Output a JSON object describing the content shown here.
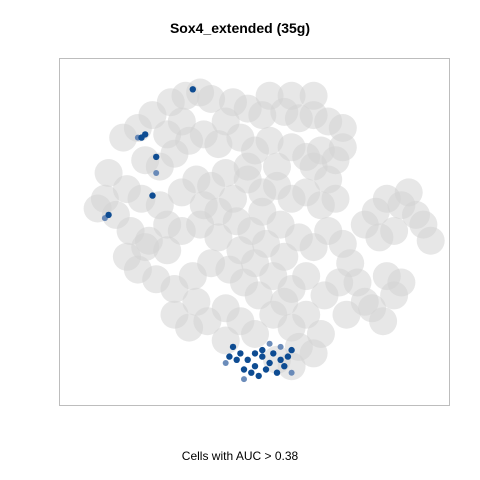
{
  "chart_data": {
    "type": "scatter",
    "title": "Sox4_extended (35g)",
    "xlabel": "Cells with AUC > 0.38",
    "ylabel": "",
    "grid": false,
    "legend": "none",
    "colors": {
      "background_cells": "#d3d3d3",
      "high_auc_cells": "#0e4c92",
      "mid_auc_cells": "#5b7fb3",
      "frame": "#bdbdbd"
    },
    "xlim": [
      0,
      100
    ],
    "ylim": [
      0,
      100
    ],
    "series": [
      {
        "name": "background",
        "points": [
          [
            14,
            79
          ],
          [
            18,
            82
          ],
          [
            22,
            86
          ],
          [
            27,
            90
          ],
          [
            31,
            92
          ],
          [
            35,
            93
          ],
          [
            38,
            91
          ],
          [
            44,
            90
          ],
          [
            48,
            88
          ],
          [
            52,
            86
          ],
          [
            58,
            87
          ],
          [
            62,
            85
          ],
          [
            66,
            86
          ],
          [
            70,
            84
          ],
          [
            74,
            82
          ],
          [
            20,
            72
          ],
          [
            24,
            70
          ],
          [
            28,
            74
          ],
          [
            32,
            78
          ],
          [
            36,
            80
          ],
          [
            40,
            77
          ],
          [
            46,
            79
          ],
          [
            50,
            75
          ],
          [
            54,
            78
          ],
          [
            60,
            76
          ],
          [
            64,
            73
          ],
          [
            68,
            75
          ],
          [
            72,
            72
          ],
          [
            10,
            68
          ],
          [
            15,
            63
          ],
          [
            19,
            60
          ],
          [
            24,
            58
          ],
          [
            30,
            62
          ],
          [
            34,
            66
          ],
          [
            38,
            64
          ],
          [
            42,
            68
          ],
          [
            48,
            66
          ],
          [
            52,
            62
          ],
          [
            56,
            64
          ],
          [
            60,
            60
          ],
          [
            64,
            62
          ],
          [
            68,
            58
          ],
          [
            72,
            60
          ],
          [
            12,
            55
          ],
          [
            16,
            50
          ],
          [
            21,
            47
          ],
          [
            26,
            44
          ],
          [
            30,
            50
          ],
          [
            35,
            52
          ],
          [
            40,
            48
          ],
          [
            45,
            53
          ],
          [
            49,
            50
          ],
          [
            53,
            46
          ],
          [
            57,
            52
          ],
          [
            62,
            48
          ],
          [
            66,
            45
          ],
          [
            70,
            50
          ],
          [
            74,
            46
          ],
          [
            18,
            38
          ],
          [
            23,
            35
          ],
          [
            28,
            32
          ],
          [
            33,
            36
          ],
          [
            38,
            40
          ],
          [
            43,
            38
          ],
          [
            47,
            34
          ],
          [
            51,
            30
          ],
          [
            55,
            36
          ],
          [
            60,
            32
          ],
          [
            64,
            36
          ],
          [
            69,
            30
          ],
          [
            73,
            34
          ],
          [
            28,
            24
          ],
          [
            32,
            20
          ],
          [
            37,
            22
          ],
          [
            42,
            26
          ],
          [
            46,
            22
          ],
          [
            50,
            18
          ],
          [
            55,
            24
          ],
          [
            60,
            20
          ],
          [
            64,
            24
          ],
          [
            68,
            18
          ],
          [
            76,
            40
          ],
          [
            78,
            34
          ],
          [
            80,
            28
          ],
          [
            75,
            24
          ],
          [
            82,
            26
          ],
          [
            85,
            22
          ],
          [
            88,
            30
          ],
          [
            90,
            34
          ],
          [
            86,
            36
          ],
          [
            80,
            52
          ],
          [
            83,
            56
          ],
          [
            86,
            60
          ],
          [
            90,
            58
          ],
          [
            94,
            55
          ],
          [
            96,
            52
          ],
          [
            88,
            50
          ],
          [
            84,
            48
          ],
          [
            92,
            62
          ],
          [
            98,
            47
          ],
          [
            56,
            10
          ],
          [
            60,
            8
          ],
          [
            62,
            14
          ],
          [
            66,
            12
          ],
          [
            48,
            70
          ],
          [
            44,
            60
          ],
          [
            36,
            58
          ],
          [
            26,
            52
          ],
          [
            20,
            45
          ],
          [
            15,
            42
          ],
          [
            9,
            60
          ],
          [
            7,
            57
          ],
          [
            56,
            70
          ],
          [
            52,
            56
          ],
          [
            40,
            56
          ],
          [
            46,
            44
          ],
          [
            58,
            42
          ],
          [
            34,
            28
          ],
          [
            42,
            16
          ],
          [
            66,
            70
          ],
          [
            70,
            66
          ],
          [
            30,
            84
          ],
          [
            26,
            80
          ],
          [
            42,
            84
          ],
          [
            54,
            92
          ],
          [
            60,
            92
          ],
          [
            66,
            92
          ],
          [
            74,
            76
          ],
          [
            58,
            28
          ],
          [
            50,
            40
          ]
        ]
      },
      {
        "name": "high_auc",
        "points": [
          [
            33,
            94
          ],
          [
            20,
            80
          ],
          [
            19,
            79
          ],
          [
            23,
            73
          ],
          [
            22,
            61
          ],
          [
            10,
            55
          ],
          [
            44,
            14
          ],
          [
            46,
            12
          ],
          [
            48,
            10
          ],
          [
            50,
            8
          ],
          [
            52,
            11
          ],
          [
            54,
            9
          ],
          [
            55,
            12
          ],
          [
            57,
            10
          ],
          [
            58,
            8
          ],
          [
            49,
            6
          ],
          [
            51,
            5
          ],
          [
            53,
            7
          ],
          [
            47,
            7
          ],
          [
            45,
            10
          ],
          [
            56,
            6
          ],
          [
            59,
            11
          ],
          [
            60,
            13
          ],
          [
            50,
            12
          ],
          [
            52,
            13
          ],
          [
            43,
            11
          ]
        ]
      },
      {
        "name": "mid_auc",
        "points": [
          [
            18,
            79
          ],
          [
            23,
            68
          ],
          [
            9,
            54
          ],
          [
            54,
            15
          ],
          [
            42,
            9
          ],
          [
            60,
            6
          ],
          [
            47,
            4
          ],
          [
            57,
            14
          ]
        ]
      }
    ]
  }
}
